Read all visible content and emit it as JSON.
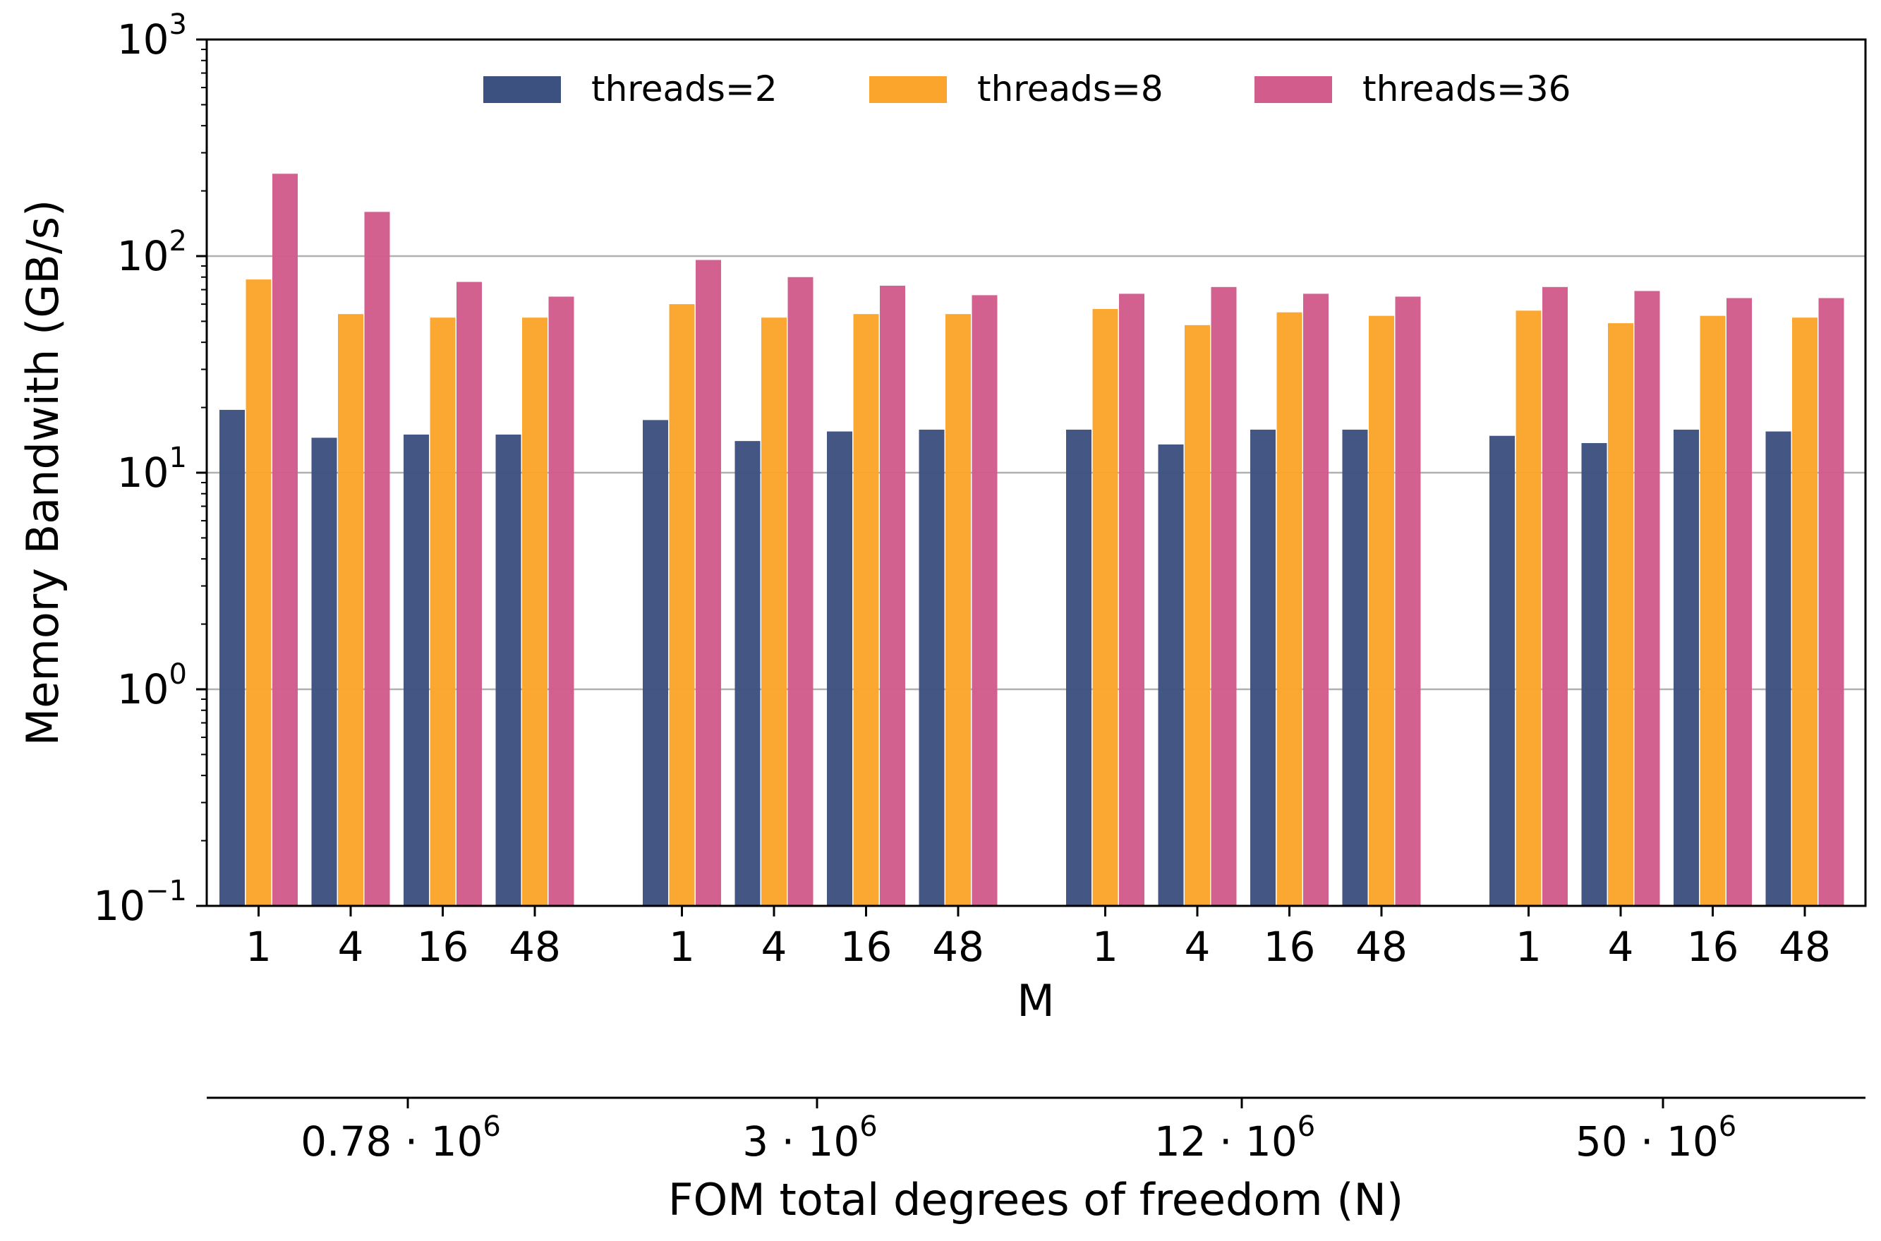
{
  "chart_data": {
    "type": "bar",
    "scale": "log",
    "ylabel": "Memory Bandwith (GB/s)",
    "xlabel": "M",
    "x2label": "FOM total degrees of freedom (N)",
    "ylim": [
      0.1,
      1000
    ],
    "y_ticks": [
      {
        "base": "10",
        "exp": "−1",
        "value": 0.1
      },
      {
        "base": "10",
        "exp": "0",
        "value": 1
      },
      {
        "base": "10",
        "exp": "1",
        "value": 10
      },
      {
        "base": "10",
        "exp": "2",
        "value": 100
      },
      {
        "base": "10",
        "exp": "3",
        "value": 1000
      }
    ],
    "grid_values": [
      1,
      10,
      100
    ],
    "legend_position": "upper-center",
    "categories": [
      "1",
      "4",
      "16",
      "48"
    ],
    "groups": [
      {
        "label": "0.78",
        "base": "10",
        "exp": "6"
      },
      {
        "label": "3",
        "base": "10",
        "exp": "6"
      },
      {
        "label": "12",
        "base": "10",
        "exp": "6"
      },
      {
        "label": "50",
        "base": "10",
        "exp": "6"
      }
    ],
    "group_separator": "·",
    "series": [
      {
        "name": "threads=2",
        "color": "#3d5180",
        "values": [
          [
            19.5,
            14.5,
            15,
            15
          ],
          [
            17.5,
            14,
            15.5,
            15.8
          ],
          [
            15.8,
            13.5,
            15.8,
            15.8
          ],
          [
            14.8,
            13.7,
            15.8,
            15.5
          ]
        ]
      },
      {
        "name": "threads=8",
        "color": "#fba52c",
        "values": [
          [
            78,
            54,
            52,
            52
          ],
          [
            60,
            52,
            54,
            54
          ],
          [
            57,
            48,
            55,
            53
          ],
          [
            56,
            49,
            53,
            52
          ]
        ]
      },
      {
        "name": "threads=36",
        "color": "#d25c8c",
        "values": [
          [
            240,
            160,
            76,
            65
          ],
          [
            96,
            80,
            73,
            66
          ],
          [
            67,
            72,
            67,
            65
          ],
          [
            72,
            69,
            64,
            64
          ]
        ]
      }
    ]
  }
}
